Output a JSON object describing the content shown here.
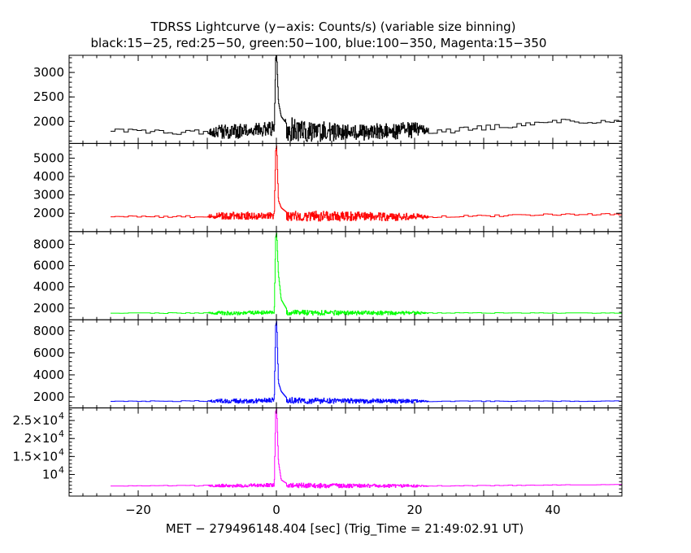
{
  "chart_data": {
    "type": "line",
    "title": "TDRSS Lightcurve (y−axis: Counts/s) (variable size binning)",
    "subtitle": "black:15−25, red:25−50, green:50−100, blue:100−350, Magenta:15−350",
    "xlabel": "MET − 279496148.404 [sec] (Trig_Time = 21:49:02.91 UT)",
    "xlim": [
      -30,
      50
    ],
    "x_ticks": [
      -20,
      0,
      20,
      40
    ],
    "x_tick_labels": [
      "−20",
      "0",
      "20",
      "40"
    ],
    "panels": [
      {
        "name": "15-25",
        "color": "#000000",
        "ylim": [
          1550,
          3350
        ],
        "y_ticks": [
          2000,
          2500,
          3000
        ],
        "y_tick_labels": [
          "2000",
          "2500",
          "3000"
        ],
        "baseline": [
          [
            -24,
            1820
          ],
          [
            -12,
            1770
          ],
          [
            -5,
            1800
          ],
          [
            -0.2,
            1850
          ],
          [
            3,
            1820
          ],
          [
            10,
            1770
          ],
          [
            20,
            1820
          ],
          [
            25,
            1800
          ],
          [
            30,
            1870
          ],
          [
            38,
            1950
          ],
          [
            40,
            2010
          ],
          [
            50,
            1990
          ]
        ],
        "noise": [
          [
            -24,
            30
          ],
          [
            -10,
            60
          ],
          [
            -8,
            150
          ],
          [
            -0.2,
            150
          ],
          [
            2,
            250
          ],
          [
            10,
            170
          ],
          [
            20,
            170
          ],
          [
            22,
            60
          ],
          [
            50,
            30
          ]
        ],
        "peak": [
          [
            -0.3,
            1800
          ],
          [
            -0.1,
            3300
          ],
          [
            0.05,
            3400
          ],
          [
            0.3,
            2400
          ],
          [
            0.7,
            2100
          ],
          [
            1.5,
            1950
          ]
        ],
        "x_start": -24
      },
      {
        "name": "25-50",
        "color": "#ff0000",
        "ylim": [
          1000,
          5800
        ],
        "y_ticks": [
          2000,
          3000,
          4000,
          5000
        ],
        "y_tick_labels": [
          "2000",
          "3000",
          "4000",
          "5000"
        ],
        "baseline": [
          [
            -24,
            1820
          ],
          [
            -12,
            1820
          ],
          [
            -5,
            1870
          ],
          [
            -0.2,
            1870
          ],
          [
            5,
            1850
          ],
          [
            20,
            1800
          ],
          [
            30,
            1850
          ],
          [
            40,
            1930
          ],
          [
            50,
            1950
          ]
        ],
        "noise": [
          [
            -24,
            30
          ],
          [
            -10,
            70
          ],
          [
            -8,
            200
          ],
          [
            -0.2,
            200
          ],
          [
            2,
            300
          ],
          [
            20,
            200
          ],
          [
            22,
            60
          ],
          [
            50,
            40
          ]
        ],
        "peak": [
          [
            -0.3,
            1900
          ],
          [
            -0.1,
            5400
          ],
          [
            0.05,
            5700
          ],
          [
            0.3,
            2700
          ],
          [
            0.7,
            2300
          ],
          [
            1.5,
            2050
          ]
        ],
        "x_start": -24
      },
      {
        "name": "50-100",
        "color": "#00ff00",
        "ylim": [
          900,
          9200
        ],
        "y_ticks": [
          2000,
          4000,
          6000,
          8000
        ],
        "y_tick_labels": [
          "2000",
          "4000",
          "6000",
          "8000"
        ],
        "baseline": [
          [
            -24,
            1530
          ],
          [
            -5,
            1530
          ],
          [
            -0.2,
            1600
          ],
          [
            5,
            1560
          ],
          [
            20,
            1540
          ],
          [
            50,
            1530
          ]
        ],
        "noise": [
          [
            -24,
            20
          ],
          [
            -10,
            60
          ],
          [
            -8,
            180
          ],
          [
            -0.2,
            180
          ],
          [
            2,
            250
          ],
          [
            20,
            170
          ],
          [
            22,
            40
          ],
          [
            50,
            20
          ]
        ],
        "peak": [
          [
            -0.3,
            1700
          ],
          [
            -0.1,
            8700
          ],
          [
            0.05,
            9100
          ],
          [
            0.3,
            5200
          ],
          [
            0.7,
            2800
          ],
          [
            1.5,
            1900
          ]
        ],
        "x_start": -24
      },
      {
        "name": "100-350",
        "color": "#0000ff",
        "ylim": [
          1000,
          9000
        ],
        "y_ticks": [
          2000,
          4000,
          6000,
          8000
        ],
        "y_tick_labels": [
          "2000",
          "4000",
          "6000",
          "8000"
        ],
        "baseline": [
          [
            -24,
            1600
          ],
          [
            -5,
            1620
          ],
          [
            -0.2,
            1700
          ],
          [
            5,
            1650
          ],
          [
            20,
            1600
          ],
          [
            50,
            1620
          ]
        ],
        "noise": [
          [
            -24,
            20
          ],
          [
            -10,
            60
          ],
          [
            -8,
            200
          ],
          [
            -0.2,
            220
          ],
          [
            2,
            280
          ],
          [
            20,
            180
          ],
          [
            22,
            40
          ],
          [
            50,
            20
          ]
        ],
        "peak": [
          [
            -0.3,
            1800
          ],
          [
            -0.1,
            8500
          ],
          [
            0.05,
            8900
          ],
          [
            0.3,
            3300
          ],
          [
            0.7,
            2500
          ],
          [
            1.5,
            1900
          ]
        ],
        "x_start": -24
      },
      {
        "name": "15-350",
        "color": "#ff00ff",
        "ylim": [
          4000,
          28500
        ],
        "y_ticks": [
          10000,
          15000,
          20000,
          25000
        ],
        "y_tick_labels_base": [
          "10",
          "1.5×10",
          "2×10",
          "2.5×10"
        ],
        "y_tick_labels_exp": [
          "4",
          "4",
          "4",
          "4"
        ],
        "baseline": [
          [
            -24,
            6800
          ],
          [
            -5,
            6900
          ],
          [
            -0.2,
            7100
          ],
          [
            5,
            6900
          ],
          [
            20,
            6800
          ],
          [
            30,
            6900
          ],
          [
            40,
            7100
          ],
          [
            50,
            7200
          ]
        ],
        "noise": [
          [
            -24,
            60
          ],
          [
            -10,
            200
          ],
          [
            -8,
            450
          ],
          [
            -0.2,
            500
          ],
          [
            2,
            700
          ],
          [
            20,
            400
          ],
          [
            22,
            100
          ],
          [
            50,
            60
          ]
        ],
        "peak": [
          [
            -0.3,
            7400
          ],
          [
            -0.1,
            27500
          ],
          [
            0.05,
            28300
          ],
          [
            0.3,
            13500
          ],
          [
            0.7,
            8500
          ],
          [
            1.5,
            7500
          ]
        ],
        "x_start": -24
      }
    ]
  }
}
